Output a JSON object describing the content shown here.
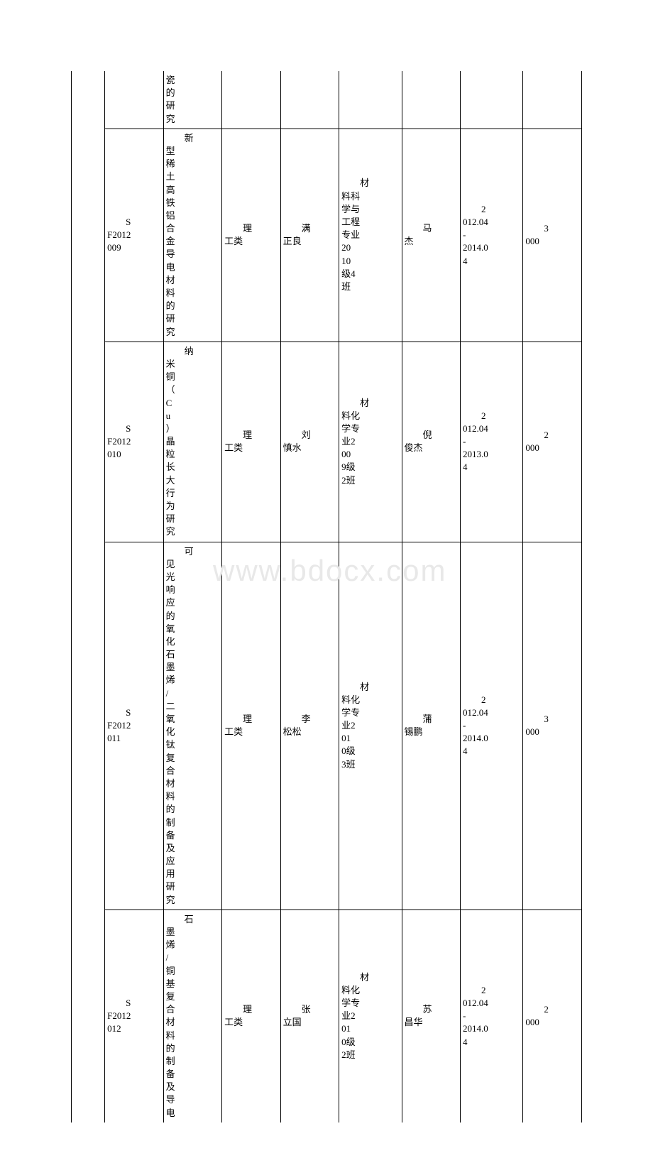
{
  "watermark": "www.bdocx.com",
  "table": {
    "border_color": "#000000",
    "background_color": "#ffffff",
    "font_size": 13,
    "watermark_color": "#e8e8e8",
    "rows": [
      {
        "id": "",
        "title": "瓷的研究",
        "category": "",
        "name1": "",
        "dept": "",
        "name2": "",
        "date": "",
        "amount": "",
        "partial": true
      },
      {
        "id": "SF2012009",
        "title": "新型稀土高铁铝合金导电材料的研究",
        "category": "理工类",
        "name1": "满正良",
        "dept": "材料科学与工程专业2010级4班",
        "name2": "马杰",
        "date": "2012.04-2014.04",
        "amount": "3000"
      },
      {
        "id": "SF2012010",
        "title": "纳米铜（Cu）晶粒长大行为研究",
        "category": "理工类",
        "name1": "刘慎水",
        "dept": "材料化学专业2009级2班",
        "name2": "倪俊杰",
        "date": "2012.04-2013.04",
        "amount": "2000"
      },
      {
        "id": "SF2012011",
        "title": "可见光响应的氧化石墨烯/二氧化钛复合材料的制备及应用研究",
        "category": "理工类",
        "name1": "李松松",
        "dept": "材料化学专业2010级3班",
        "name2": "蒲锡鹏",
        "date": "2012.04-2014.04",
        "amount": "3000"
      },
      {
        "id": "SF2012012",
        "title": "石墨烯/铜基复合材料的制备及导电",
        "category": "理工类",
        "name1": "张立国",
        "dept": "材料化学专业2010级2班",
        "name2": "苏昌华",
        "date": "2012.04-2014.04",
        "amount": "2000"
      }
    ]
  }
}
